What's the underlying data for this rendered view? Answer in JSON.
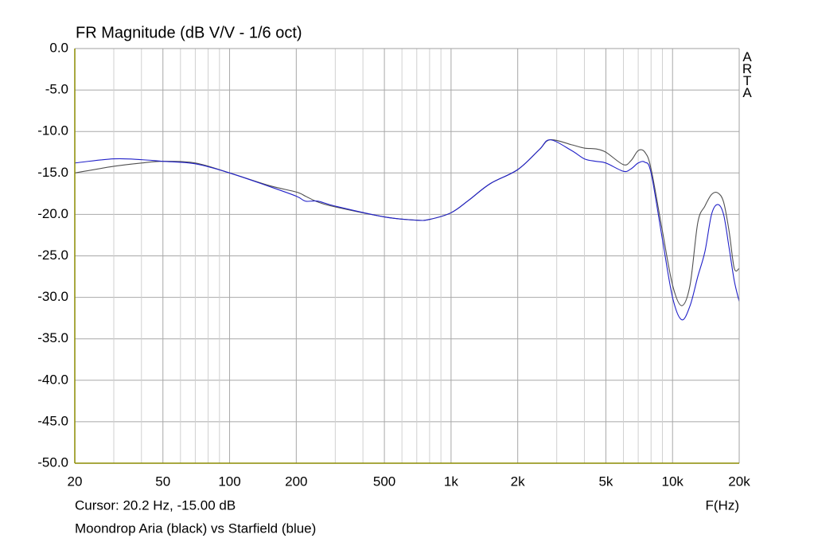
{
  "chart_data": {
    "type": "line",
    "title": "FR Magnitude (dB V/V - 1/6 oct)",
    "watermark": "ARTA",
    "cursor_readout": "Cursor: 20.2 Hz, -15.00 dB",
    "x_label": "F(Hz)",
    "note": "Moondrop Aria (black) vs Starfield (blue)",
    "x_log": true,
    "grid": true,
    "xlim": [
      20,
      20000
    ],
    "ylim": [
      -50,
      0
    ],
    "xticks": [
      20,
      50,
      100,
      200,
      500,
      {
        "value": 1000,
        "label": "1k"
      },
      {
        "value": 2000,
        "label": "2k"
      },
      {
        "value": 5000,
        "label": "5k"
      },
      {
        "value": 10000,
        "label": "10k"
      },
      {
        "value": 20000,
        "label": "20k"
      }
    ],
    "xminorticks": [
      30,
      40,
      60,
      70,
      80,
      90,
      300,
      400,
      600,
      700,
      800,
      900,
      3000,
      4000,
      6000,
      7000,
      8000,
      9000
    ],
    "yticks": [
      {
        "value": 0,
        "label": "0.0"
      },
      {
        "value": -5,
        "label": "-5.0"
      },
      {
        "value": -10,
        "label": "-10.0"
      },
      {
        "value": -15,
        "label": "-15.0"
      },
      {
        "value": -20,
        "label": "-20.0"
      },
      {
        "value": -25,
        "label": "-25.0"
      },
      {
        "value": -30,
        "label": "-30.0"
      },
      {
        "value": -35,
        "label": "-35.0"
      },
      {
        "value": -40,
        "label": "-40.0"
      },
      {
        "value": -45,
        "label": "-45.0"
      },
      {
        "value": -50,
        "label": "-50.0"
      }
    ],
    "x": [
      20,
      30,
      40,
      50,
      70,
      100,
      150,
      200,
      220,
      250,
      300,
      500,
      700,
      800,
      1000,
      1200,
      1500,
      2000,
      2500,
      2800,
      3500,
      4000,
      4500,
      5000,
      6000,
      6500,
      7000,
      7500,
      8000,
      9000,
      10000,
      11000,
      12000,
      13000,
      14000,
      15000,
      16000,
      17000,
      18000,
      19000,
      20000
    ],
    "series": [
      {
        "color": "#505050",
        "values": [
          -15.0,
          -14.2,
          -13.8,
          -13.6,
          -13.8,
          -15.0,
          -16.5,
          -17.3,
          -17.8,
          -18.5,
          -19.1,
          -20.3,
          -20.7,
          -20.6,
          -19.8,
          -18.3,
          -16.3,
          -14.6,
          -12.2,
          -11.0,
          -11.6,
          -12.0,
          -12.1,
          -12.5,
          -14.0,
          -13.5,
          -12.3,
          -12.5,
          -14.5,
          -22.0,
          -28.5,
          -31.0,
          -28.5,
          -21.0,
          -19.0,
          -17.6,
          -17.4,
          -18.5,
          -22.0,
          -26.5,
          -26.5
        ]
      },
      {
        "color": "#2020c8",
        "values": [
          -13.8,
          -13.3,
          -13.4,
          -13.6,
          -13.9,
          -15.0,
          -16.6,
          -17.8,
          -18.4,
          -18.4,
          -19.0,
          -20.3,
          -20.7,
          -20.6,
          -19.8,
          -18.3,
          -16.3,
          -14.6,
          -12.2,
          -11.0,
          -12.3,
          -13.3,
          -13.6,
          -13.8,
          -14.8,
          -14.5,
          -13.8,
          -13.7,
          -15.0,
          -23.0,
          -30.0,
          -32.7,
          -31.0,
          -27.5,
          -24.5,
          -20.0,
          -18.8,
          -20.0,
          -24.0,
          -28.0,
          -30.5
        ]
      }
    ]
  }
}
